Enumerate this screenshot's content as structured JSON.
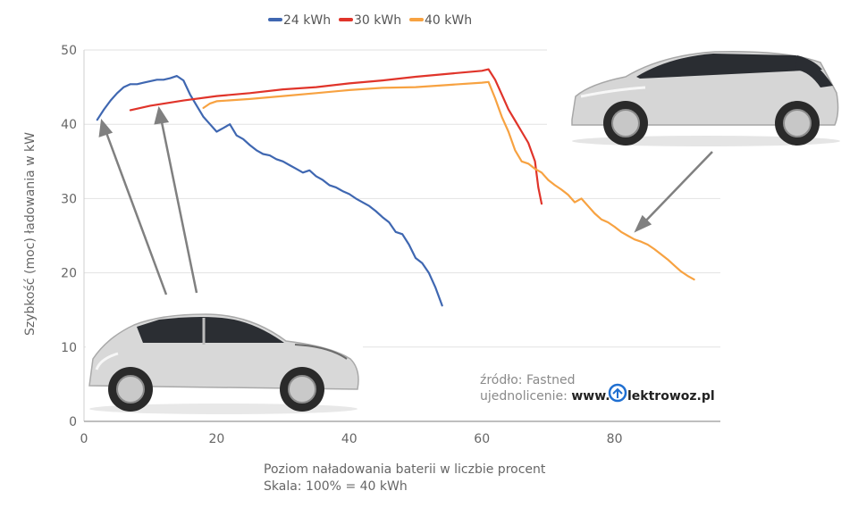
{
  "chart_data": {
    "type": "line",
    "title": "",
    "xlabel": "Poziom naładowania baterii w liczbie procent",
    "xlabel_line2": "Skala: 100% = 40 kWh",
    "ylabel": "Szybkość (moc) ładowania w kW",
    "xlim": [
      0,
      95
    ],
    "ylim": [
      0,
      50
    ],
    "x_ticks": [
      0,
      20,
      40,
      60,
      80
    ],
    "y_ticks": [
      0,
      10,
      20,
      30,
      40,
      50
    ],
    "grid": "horizontal",
    "legend_position": "top-center",
    "series": [
      {
        "name": "24 kWh",
        "color": "#3f67b1",
        "points": [
          [
            2,
            40.6
          ],
          [
            3,
            42.0
          ],
          [
            4,
            43.2
          ],
          [
            5,
            44.2
          ],
          [
            6,
            45.0
          ],
          [
            7,
            45.4
          ],
          [
            8,
            45.4
          ],
          [
            9,
            45.6
          ],
          [
            10,
            45.8
          ],
          [
            11,
            46.0
          ],
          [
            12,
            46.0
          ],
          [
            13,
            46.2
          ],
          [
            14,
            46.5
          ],
          [
            15,
            45.9
          ],
          [
            16,
            44.0
          ],
          [
            17,
            42.5
          ],
          [
            18,
            41.0
          ],
          [
            19,
            40.0
          ],
          [
            20,
            39.0
          ],
          [
            21,
            39.5
          ],
          [
            22,
            40.0
          ],
          [
            23,
            38.5
          ],
          [
            24,
            38.0
          ],
          [
            25,
            37.2
          ],
          [
            26,
            36.5
          ],
          [
            27,
            36.0
          ],
          [
            28,
            35.8
          ],
          [
            29,
            35.3
          ],
          [
            30,
            35.0
          ],
          [
            31,
            34.5
          ],
          [
            32,
            34.0
          ],
          [
            33,
            33.5
          ],
          [
            34,
            33.8
          ],
          [
            35,
            33.0
          ],
          [
            36,
            32.5
          ],
          [
            37,
            31.8
          ],
          [
            38,
            31.5
          ],
          [
            39,
            31.0
          ],
          [
            40,
            30.6
          ],
          [
            41,
            30.0
          ],
          [
            42,
            29.5
          ],
          [
            43,
            29.0
          ],
          [
            44,
            28.3
          ],
          [
            45,
            27.5
          ],
          [
            46,
            26.8
          ],
          [
            47,
            25.5
          ],
          [
            48,
            25.2
          ],
          [
            49,
            23.8
          ],
          [
            50,
            22.0
          ],
          [
            51,
            21.3
          ],
          [
            52,
            20.0
          ],
          [
            53,
            18.0
          ],
          [
            54,
            15.6
          ]
        ]
      },
      {
        "name": "30 kWh",
        "color": "#e0342a",
        "points": [
          [
            7,
            41.9
          ],
          [
            10,
            42.5
          ],
          [
            15,
            43.2
          ],
          [
            20,
            43.8
          ],
          [
            25,
            44.2
          ],
          [
            30,
            44.7
          ],
          [
            35,
            45.0
          ],
          [
            40,
            45.5
          ],
          [
            45,
            45.9
          ],
          [
            50,
            46.4
          ],
          [
            55,
            46.8
          ],
          [
            60,
            47.2
          ],
          [
            61,
            47.4
          ],
          [
            62,
            46.0
          ],
          [
            63,
            44.0
          ],
          [
            64,
            42.0
          ],
          [
            65,
            40.5
          ],
          [
            66,
            39.0
          ],
          [
            67,
            37.5
          ],
          [
            68,
            35.0
          ],
          [
            68.5,
            31.5
          ],
          [
            69,
            29.3
          ]
        ]
      },
      {
        "name": "40 kWh",
        "color": "#f7a241",
        "points": [
          [
            18,
            42.2
          ],
          [
            19,
            42.8
          ],
          [
            20,
            43.1
          ],
          [
            25,
            43.4
          ],
          [
            30,
            43.8
          ],
          [
            35,
            44.2
          ],
          [
            40,
            44.6
          ],
          [
            45,
            44.9
          ],
          [
            50,
            45.0
          ],
          [
            55,
            45.3
          ],
          [
            60,
            45.6
          ],
          [
            61,
            45.7
          ],
          [
            62,
            43.5
          ],
          [
            63,
            41.0
          ],
          [
            64,
            39.0
          ],
          [
            65,
            36.5
          ],
          [
            66,
            35.0
          ],
          [
            67,
            34.7
          ],
          [
            68,
            34.0
          ],
          [
            69,
            33.5
          ],
          [
            70,
            32.5
          ],
          [
            71,
            31.8
          ],
          [
            72,
            31.2
          ],
          [
            73,
            30.5
          ],
          [
            74,
            29.5
          ],
          [
            75,
            30.0
          ],
          [
            76,
            29.0
          ],
          [
            77,
            28.0
          ],
          [
            78,
            27.2
          ],
          [
            79,
            26.8
          ],
          [
            80,
            26.2
          ],
          [
            81,
            25.5
          ],
          [
            82,
            25.0
          ],
          [
            83,
            24.5
          ],
          [
            84,
            24.2
          ],
          [
            85,
            23.8
          ],
          [
            86,
            23.2
          ],
          [
            87,
            22.5
          ],
          [
            88,
            21.8
          ],
          [
            89,
            21.0
          ],
          [
            90,
            20.2
          ],
          [
            91,
            19.6
          ],
          [
            92,
            19.1
          ]
        ]
      }
    ]
  },
  "source": {
    "line1": "źródło: Fastned",
    "line2_prefix": "ujednolicenie:",
    "brand_www": "www.",
    "brand_rest": "lektrowoz.pl"
  }
}
